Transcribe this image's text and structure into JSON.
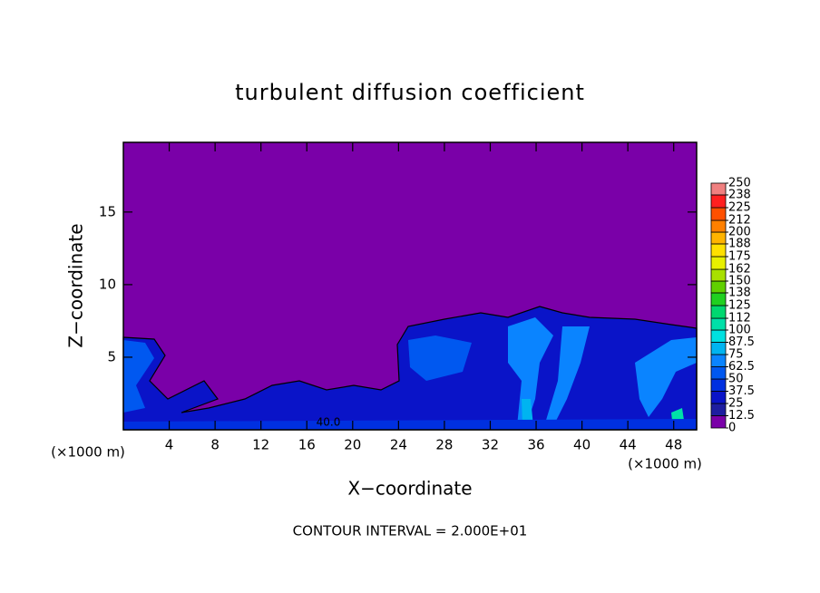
{
  "chart_data": {
    "type": "contour",
    "title": "turbulent diffusion coefficient",
    "x_label": "X−coordinate",
    "y_label": "Z−coordinate",
    "x_unit_labels": [
      "(×1000 m)",
      "(×1000 m)"
    ],
    "annotation": "CONTOUR INTERVAL = 2.000E+01",
    "contour_labels": [
      "40.0"
    ],
    "xlim": [
      0,
      50
    ],
    "ylim": [
      0,
      19.8
    ],
    "xticks": [
      4,
      8,
      12,
      16,
      20,
      24,
      28,
      32,
      36,
      40,
      44,
      48
    ],
    "yticks": [
      5,
      10,
      15
    ],
    "colorbar": {
      "lim": [
        0,
        250
      ],
      "ticks": [
        0,
        12.5,
        25,
        37.5,
        50,
        62.5,
        75,
        87.5,
        100,
        112,
        125,
        138,
        150,
        162,
        175,
        188,
        200,
        212,
        225,
        238,
        250
      ],
      "colors": [
        "#7a00a8",
        "#1e1ea0",
        "#0a14c8",
        "#0030e0",
        "#0058f0",
        "#0a84ff",
        "#00b4f0",
        "#00e0e0",
        "#00e0a8",
        "#00d870",
        "#20d020",
        "#60d000",
        "#a8e000",
        "#e8f000",
        "#ffe000",
        "#ffb400",
        "#ff8000",
        "#ff5000",
        "#ff2020",
        "#f08080"
      ]
    }
  }
}
